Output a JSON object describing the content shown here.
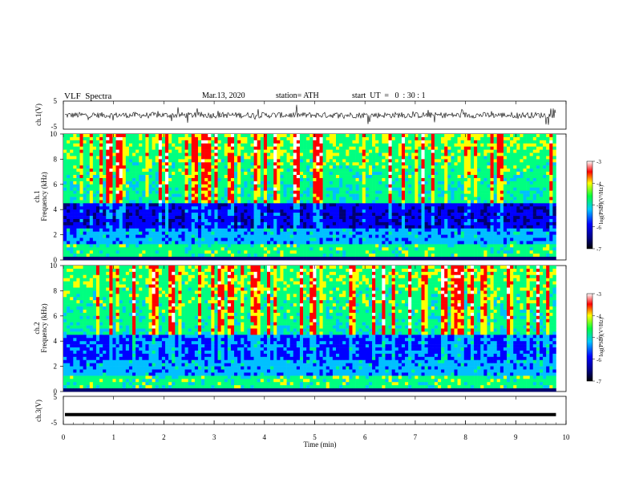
{
  "header": {
    "title": "VLF  Spectra",
    "date": "Mar.13, 2020",
    "station": "station= ATH",
    "start": "start  UT  =   0  : 30 : 1"
  },
  "chart_data": [
    {
      "type": "line",
      "name": "ch1-waveform",
      "ylabel": "ch.1(V)",
      "ylim": [
        -5,
        5
      ],
      "yticks": [
        "5",
        "-5"
      ],
      "xlim": [
        0,
        10
      ],
      "approx_baseline": 0,
      "approx_noise_amplitude": 1.5
    },
    {
      "type": "heatmap",
      "name": "ch1-spectrogram",
      "ylabel_channel": "ch.1",
      "ylabel": "Frequency  (kHz)",
      "ylim": [
        0,
        10
      ],
      "yticks": [
        "0",
        "2",
        "4",
        "6",
        "8",
        "10"
      ],
      "xlim": [
        0,
        9.8
      ],
      "colorbar": {
        "label": "log(PSD)(V²/Hz)",
        "range": [
          -7,
          -3
        ],
        "ticks": [
          "-3",
          "-4",
          "-5",
          "-6",
          "-7"
        ]
      }
    },
    {
      "type": "heatmap",
      "name": "ch2-spectrogram",
      "ylabel_channel": "ch.2",
      "ylabel": "Frequency  (kHz)",
      "ylim": [
        0,
        10
      ],
      "yticks": [
        "0",
        "2",
        "4",
        "6",
        "8",
        "10"
      ],
      "xlim": [
        0,
        9.8
      ],
      "colorbar": {
        "label": "log(PSD)(V²/Hz)",
        "range": [
          -7,
          -3
        ],
        "ticks": [
          "-3",
          "-4",
          "-5",
          "-6",
          "-7"
        ]
      }
    },
    {
      "type": "line",
      "name": "ch3-waveform",
      "ylabel": "ch.3(V)",
      "ylim": [
        -5,
        5
      ],
      "yticks": [
        "5",
        "-5"
      ],
      "xlim": [
        0,
        10
      ],
      "approx_baseline": -1.5
    }
  ],
  "xaxis": {
    "label": "Time  (min)",
    "ticks": [
      "0",
      "1",
      "2",
      "3",
      "4",
      "5",
      "6",
      "7",
      "8",
      "9",
      "10"
    ]
  },
  "colors": {
    "colormap": [
      "#000070",
      "#0000ff",
      "#00c0ff",
      "#00ff80",
      "#ffff00",
      "#ff0000",
      "#ffffff"
    ]
  }
}
